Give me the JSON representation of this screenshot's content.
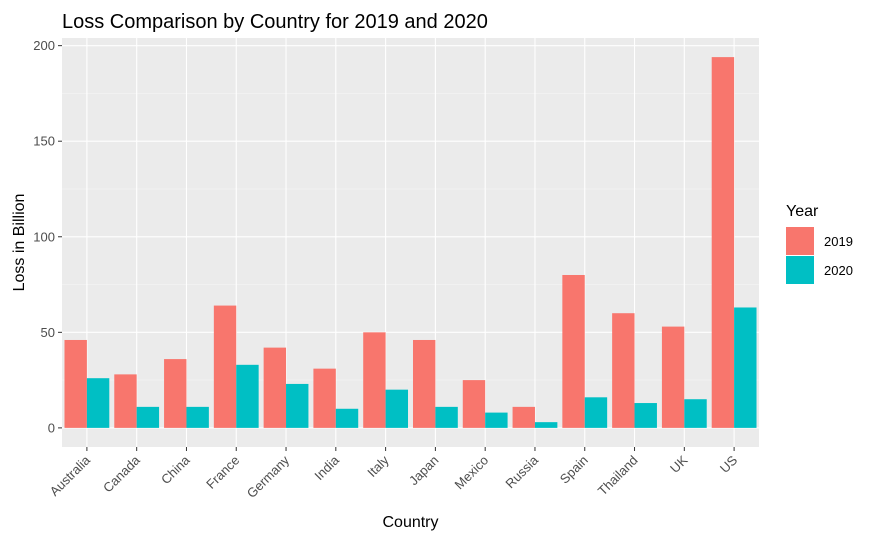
{
  "chart_data": {
    "type": "bar",
    "title": "Loss Comparison by Country for 2019 and 2020",
    "xlabel": "Country",
    "ylabel": "Loss in Billion",
    "categories": [
      "Australia",
      "Canada",
      "China",
      "France",
      "Germany",
      "India",
      "Italy",
      "Japan",
      "Mexico",
      "Russia",
      "Spain",
      "Thailand",
      "UK",
      "US"
    ],
    "series": [
      {
        "name": "2019",
        "color": "#f8766d",
        "values": [
          46,
          28,
          36,
          64,
          42,
          31,
          50,
          46,
          25,
          11,
          80,
          60,
          53,
          194
        ]
      },
      {
        "name": "2020",
        "color": "#00bfc4",
        "values": [
          26,
          11,
          11,
          33,
          23,
          10,
          20,
          11,
          8,
          3,
          16,
          13,
          15,
          63
        ]
      }
    ],
    "ylim": [
      -10,
      204
    ],
    "yticks": [
      0,
      50,
      100,
      150,
      200
    ],
    "legend": {
      "title": "Year",
      "placement": "right"
    },
    "grid": true,
    "colors": {
      "panel": "#ebebeb",
      "grid_major": "#ffffff",
      "grid_minor": "#f5f5f5"
    }
  }
}
